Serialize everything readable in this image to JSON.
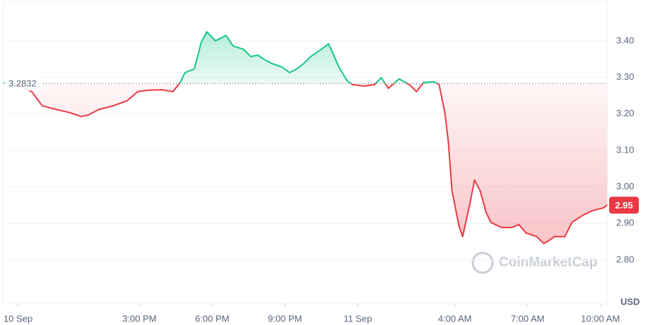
{
  "chart_data": {
    "type": "line",
    "reference_value": 3.2832,
    "reference_label": "3.2832",
    "current_price": 2.95,
    "y_axis_label": "USD",
    "watermark": "CoinMarketCap",
    "x": [
      9.4,
      9.84,
      10.56,
      11.0,
      11.58,
      12.16,
      12.6,
      12.89,
      13.33,
      13.91,
      14.49,
      14.93,
      15.37,
      15.95,
      16.38,
      16.68,
      16.88,
      17.26,
      17.55,
      17.78,
      18.13,
      18.57,
      18.86,
      19.29,
      19.59,
      19.88,
      20.17,
      20.46,
      20.89,
      21.19,
      21.48,
      21.77,
      22.06,
      22.5,
      22.79,
      22.93,
      23.22,
      23.57,
      23.8,
      24.24,
      24.68,
      24.97,
      25.26,
      25.7,
      26.13,
      26.42,
      26.71,
      27.15,
      27.35,
      27.59,
      27.73,
      27.88,
      28.17,
      28.32,
      28.61,
      28.81,
      29.04,
      29.28,
      29.48,
      29.92,
      30.35,
      30.64,
      30.93,
      31.37,
      31.66,
      31.81,
      32.1,
      32.53,
      32.83,
      33.26,
      33.7,
      34.14,
      34.28
    ],
    "values": [
      3.286,
      3.284,
      3.261,
      3.222,
      3.212,
      3.203,
      3.193,
      3.197,
      3.212,
      3.222,
      3.236,
      3.261,
      3.265,
      3.266,
      3.261,
      3.286,
      3.313,
      3.323,
      3.396,
      3.425,
      3.4,
      3.415,
      3.386,
      3.377,
      3.357,
      3.361,
      3.348,
      3.338,
      3.328,
      3.313,
      3.323,
      3.338,
      3.357,
      3.377,
      3.392,
      3.373,
      3.328,
      3.29,
      3.28,
      3.276,
      3.28,
      3.299,
      3.27,
      3.296,
      3.28,
      3.261,
      3.286,
      3.288,
      3.28,
      3.203,
      3.125,
      2.99,
      2.893,
      2.864,
      2.951,
      3.019,
      2.99,
      2.932,
      2.903,
      2.889,
      2.889,
      2.897,
      2.874,
      2.864,
      2.845,
      2.85,
      2.864,
      2.864,
      2.903,
      2.922,
      2.936,
      2.943,
      2.951
    ],
    "colors": {
      "up": "#16c784",
      "down": "#ea3943"
    },
    "xlim": [
      9.4,
      34.3
    ],
    "xticks": [
      {
        "value": 10,
        "label": "10 Sep"
      },
      {
        "value": 15,
        "label": "3:00 PM"
      },
      {
        "value": 18,
        "label": "6:00 PM"
      },
      {
        "value": 21,
        "label": "9:00 PM"
      },
      {
        "value": 24,
        "label": "11 Sep"
      },
      {
        "value": 28,
        "label": "4:00 AM"
      },
      {
        "value": 31,
        "label": "7:00 AM"
      },
      {
        "value": 34,
        "label": "10:00 AM"
      }
    ],
    "ylim": [
      2.68,
      3.508
    ],
    "yticks": [
      {
        "value": 2.8,
        "label": "2.80"
      },
      {
        "value": 2.9,
        "label": "2.90"
      },
      {
        "value": 3.0,
        "label": "3.00"
      },
      {
        "value": 3.1,
        "label": "3.10"
      },
      {
        "value": 3.2,
        "label": "3.20"
      },
      {
        "value": 3.3,
        "label": "3.30"
      },
      {
        "value": 3.4,
        "label": "3.40"
      }
    ],
    "grid": true
  }
}
